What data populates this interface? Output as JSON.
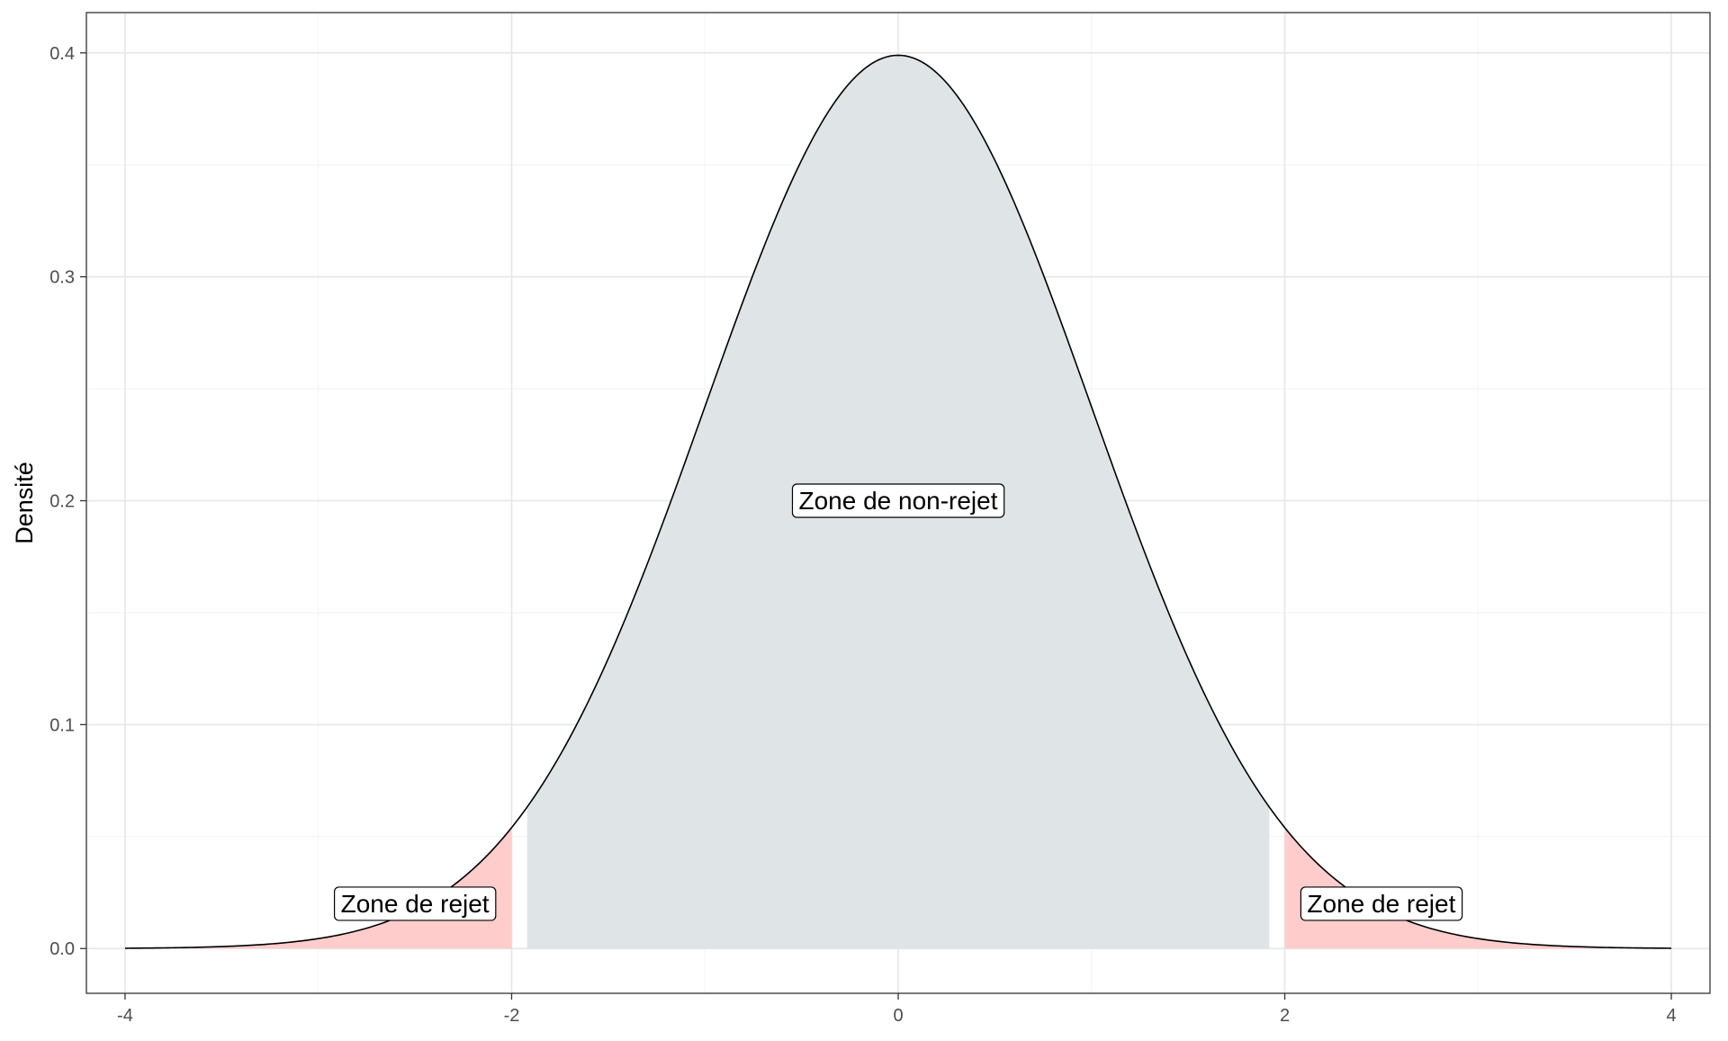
{
  "chart_data": {
    "type": "area",
    "title": "",
    "xlabel": "",
    "ylabel": "Densité",
    "xlim": [
      -4.2,
      4.2
    ],
    "ylim": [
      -0.02,
      0.418
    ],
    "x_ticks": [
      -4,
      -2,
      0,
      2,
      4
    ],
    "x_tick_labels": [
      "-4",
      "-2",
      "0",
      "2",
      "4"
    ],
    "y_ticks": [
      0.0,
      0.1,
      0.2,
      0.3,
      0.4
    ],
    "y_tick_labels": [
      "0.0",
      "0.1",
      "0.2",
      "0.3",
      "0.4"
    ],
    "grid": true,
    "legend": "none",
    "curve": {
      "name": "",
      "distribution": "standard normal",
      "mean": 0,
      "sd": 1,
      "x_range": [
        -4,
        4
      ],
      "color": "#000000"
    },
    "regions": [
      {
        "name": "rejet-gauche",
        "x_range": [
          -4,
          -2
        ],
        "color": "#ffcccc"
      },
      {
        "name": "non-rejet",
        "x_range": [
          -1.92,
          1.92
        ],
        "color": "#dfe5e7"
      },
      {
        "name": "rejet-droite",
        "x_range": [
          2,
          4
        ],
        "color": "#ffcccc"
      }
    ],
    "annotations": [
      {
        "text": "Zone de rejet",
        "x": -2.5,
        "y": 0.02
      },
      {
        "text": "Zone de non-rejet",
        "x": 0,
        "y": 0.2
      },
      {
        "text": "Zone de rejet",
        "x": 2.5,
        "y": 0.02
      }
    ]
  }
}
